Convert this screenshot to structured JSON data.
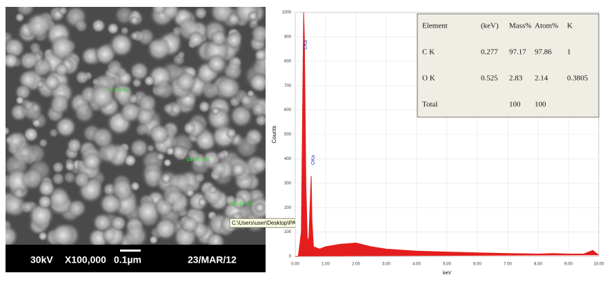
{
  "sem_image": {
    "footer": [
      "30kV",
      "X100,000",
      "0.1µm",
      "23/MAR/12"
    ],
    "measurements": [
      "57.63 nm",
      "54.84 nm",
      "58.41 nm"
    ],
    "tooltip": "C:\\Users\\user\\Desktop\\PAPER\\pds-sem.png"
  },
  "chart_data": {
    "type": "area",
    "xlabel": "keV",
    "ylabel": "Counts",
    "color": "#e41e1e",
    "x": [
      0,
      0.1,
      0.2,
      0.25,
      0.277,
      0.3,
      0.35,
      0.4,
      0.45,
      0.5,
      0.525,
      0.55,
      0.6,
      0.8,
      1.0,
      1.5,
      2.0,
      2.5,
      3,
      4,
      5,
      6,
      7,
      8,
      8.5,
      9,
      9.5,
      9.8,
      10
    ],
    "y": [
      0,
      0,
      100,
      700,
      1000,
      900,
      300,
      60,
      80,
      250,
      330,
      150,
      40,
      30,
      40,
      50,
      55,
      40,
      30,
      22,
      18,
      15,
      12,
      10,
      12,
      10,
      10,
      25,
      5
    ],
    "xlim": [
      0,
      10
    ],
    "ylim": [
      0,
      1000
    ],
    "xticks": [
      {
        "value": 0,
        "label": "0.00"
      },
      {
        "value": 1,
        "label": "1.00"
      },
      {
        "value": 2,
        "label": "2.00"
      },
      {
        "value": 3,
        "label": "3.00"
      },
      {
        "value": 4,
        "label": "4.00"
      },
      {
        "value": 5,
        "label": "5.00"
      },
      {
        "value": 6,
        "label": "6.00"
      },
      {
        "value": 7,
        "label": "7.00"
      },
      {
        "value": 8,
        "label": "8.00"
      },
      {
        "value": 9,
        "label": "9.00"
      },
      {
        "value": 10,
        "label": "10.00"
      }
    ],
    "yticks": [
      0,
      100,
      200,
      300,
      400,
      500,
      600,
      700,
      800,
      900,
      1000
    ],
    "grid": true,
    "annotations": [
      {
        "text": "CKa",
        "x": 0.277
      },
      {
        "text": "OKa",
        "x": 0.525
      }
    ]
  },
  "eds_table": {
    "headers": [
      "Element",
      "(keV)",
      "Mass%",
      "Atom%",
      "K"
    ],
    "rows": [
      [
        "C K",
        "0.277",
        "97.17",
        "97.86",
        "1"
      ],
      [
        "O K",
        "0.525",
        "2.83",
        "2.14",
        "0.3805"
      ],
      [
        "Total",
        null,
        "100",
        "100",
        null
      ]
    ]
  }
}
